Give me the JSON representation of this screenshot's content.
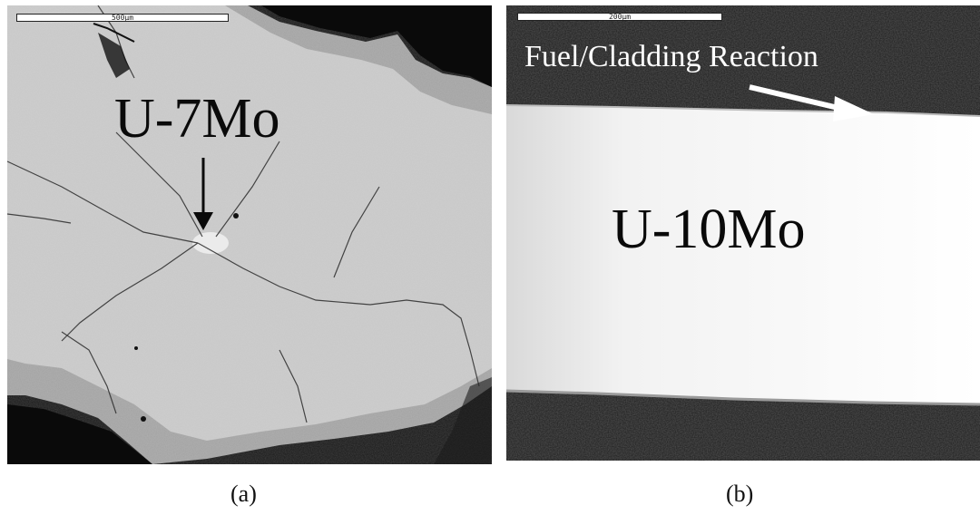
{
  "panel_a": {
    "scale_bar_text": "500μm",
    "material_label": "U-7Mo",
    "caption": "(a)"
  },
  "panel_b": {
    "scale_bar_text": "200μm",
    "annotation_label": "Fuel/Cladding Reaction",
    "material_label": "U-10Mo",
    "caption": "(b)"
  }
}
